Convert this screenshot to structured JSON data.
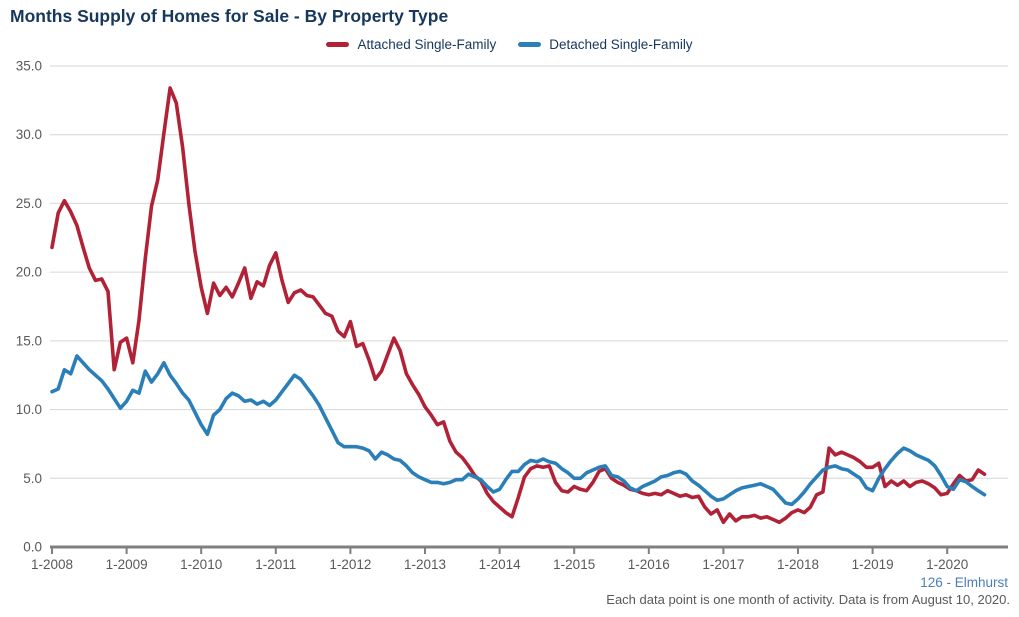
{
  "title": "Months Supply of Homes for Sale - By Property Type",
  "legend": [
    {
      "label": "Attached Single-Family",
      "color": "#b22237"
    },
    {
      "label": "Detached Single-Family",
      "color": "#2b7fb8"
    }
  ],
  "footer": {
    "source": "126 - Elmhurst",
    "note": "Each data point is one month of activity. Data is from August 10, 2020."
  },
  "colors": {
    "title_text": "#17375d",
    "axis_text": "#595959",
    "gridline": "#d6d6d6",
    "axis_line": "#7f7f7f",
    "attached_line": "#b22237",
    "detached_line": "#2b7fb8",
    "source_text": "#4a7ebb"
  },
  "chart_data": {
    "type": "line",
    "title": "Months Supply of Homes for Sale - By Property Type",
    "xlabel": "",
    "ylabel": "",
    "x_start": "2008-01",
    "x_interval": "month",
    "x_tick_labels": [
      "1-2008",
      "1-2009",
      "1-2010",
      "1-2011",
      "1-2012",
      "1-2013",
      "1-2014",
      "1-2015",
      "1-2016",
      "1-2017",
      "1-2018",
      "1-2019",
      "1-2020"
    ],
    "ylim": [
      0,
      35
    ],
    "y_tick_step": 5,
    "y_tick_labels": [
      "0.0",
      "5.0",
      "10.0",
      "15.0",
      "20.0",
      "25.0",
      "30.0",
      "35.0"
    ],
    "grid": "horizontal",
    "legend_position": "top-center",
    "series": [
      {
        "name": "Attached Single-Family",
        "color": "#b22237",
        "values": [
          21.8,
          24.3,
          25.2,
          24.4,
          23.4,
          21.8,
          20.3,
          19.4,
          19.5,
          18.6,
          12.9,
          14.9,
          15.2,
          13.4,
          16.5,
          21.0,
          24.8,
          26.7,
          30.1,
          33.4,
          32.3,
          29.1,
          25.0,
          21.5,
          18.9,
          17.0,
          19.2,
          18.3,
          18.9,
          18.2,
          19.2,
          20.3,
          18.1,
          19.3,
          19.0,
          20.5,
          21.4,
          19.4,
          17.8,
          18.5,
          18.7,
          18.3,
          18.2,
          17.6,
          17.0,
          16.8,
          15.7,
          15.3,
          16.4,
          14.6,
          14.8,
          13.6,
          12.2,
          12.8,
          14.0,
          15.2,
          14.3,
          12.6,
          11.8,
          11.1,
          10.2,
          9.6,
          8.9,
          9.1,
          7.7,
          6.9,
          6.5,
          5.9,
          5.2,
          4.8,
          3.9,
          3.3,
          2.9,
          2.5,
          2.2,
          3.6,
          5.1,
          5.7,
          5.9,
          5.8,
          5.9,
          4.7,
          4.1,
          4.0,
          4.4,
          4.2,
          4.1,
          4.7,
          5.5,
          5.7,
          5.0,
          4.7,
          4.5,
          4.2,
          4.1,
          3.9,
          3.8,
          3.9,
          3.8,
          4.1,
          3.9,
          3.7,
          3.8,
          3.6,
          3.7,
          2.9,
          2.4,
          2.7,
          1.8,
          2.4,
          1.9,
          2.2,
          2.2,
          2.3,
          2.1,
          2.2,
          2.0,
          1.8,
          2.1,
          2.5,
          2.7,
          2.5,
          2.9,
          3.8,
          4.0,
          7.2,
          6.7,
          6.9,
          6.7,
          6.5,
          6.2,
          5.8,
          5.8,
          6.1,
          4.4,
          4.8,
          4.5,
          4.8,
          4.4,
          4.7,
          4.8,
          4.6,
          4.3,
          3.8,
          3.9,
          4.6,
          5.2,
          4.8,
          4.9,
          5.6,
          5.3
        ]
      },
      {
        "name": "Detached Single-Family",
        "color": "#2b7fb8",
        "values": [
          11.3,
          11.5,
          12.9,
          12.6,
          13.9,
          13.4,
          12.9,
          12.5,
          12.1,
          11.5,
          10.8,
          10.1,
          10.6,
          11.4,
          11.2,
          12.8,
          12.0,
          12.6,
          13.4,
          12.5,
          11.9,
          11.2,
          10.7,
          9.8,
          8.9,
          8.2,
          9.6,
          10.0,
          10.8,
          11.2,
          11.0,
          10.6,
          10.7,
          10.4,
          10.6,
          10.3,
          10.7,
          11.3,
          11.9,
          12.5,
          12.2,
          11.6,
          11.0,
          10.3,
          9.4,
          8.5,
          7.6,
          7.3,
          7.3,
          7.3,
          7.2,
          7.0,
          6.4,
          6.9,
          6.7,
          6.4,
          6.3,
          5.9,
          5.4,
          5.1,
          4.9,
          4.7,
          4.7,
          4.6,
          4.7,
          4.9,
          4.9,
          5.3,
          5.1,
          4.9,
          4.4,
          4.0,
          4.2,
          4.9,
          5.5,
          5.5,
          6.0,
          6.3,
          6.2,
          6.4,
          6.2,
          6.1,
          5.7,
          5.4,
          5.0,
          5.0,
          5.4,
          5.6,
          5.8,
          5.9,
          5.2,
          5.1,
          4.8,
          4.3,
          4.1,
          4.4,
          4.6,
          4.8,
          5.1,
          5.2,
          5.4,
          5.5,
          5.3,
          4.8,
          4.5,
          4.1,
          3.7,
          3.4,
          3.5,
          3.8,
          4.1,
          4.3,
          4.4,
          4.5,
          4.6,
          4.4,
          4.2,
          3.7,
          3.2,
          3.1,
          3.5,
          4.0,
          4.6,
          5.1,
          5.6,
          5.8,
          5.9,
          5.7,
          5.6,
          5.3,
          5.0,
          4.3,
          4.1,
          5.0,
          5.7,
          6.3,
          6.8,
          7.2,
          7.0,
          6.7,
          6.5,
          6.3,
          5.9,
          5.2,
          4.4,
          4.2,
          4.9,
          4.75,
          4.4,
          4.1,
          3.8
        ]
      }
    ]
  }
}
